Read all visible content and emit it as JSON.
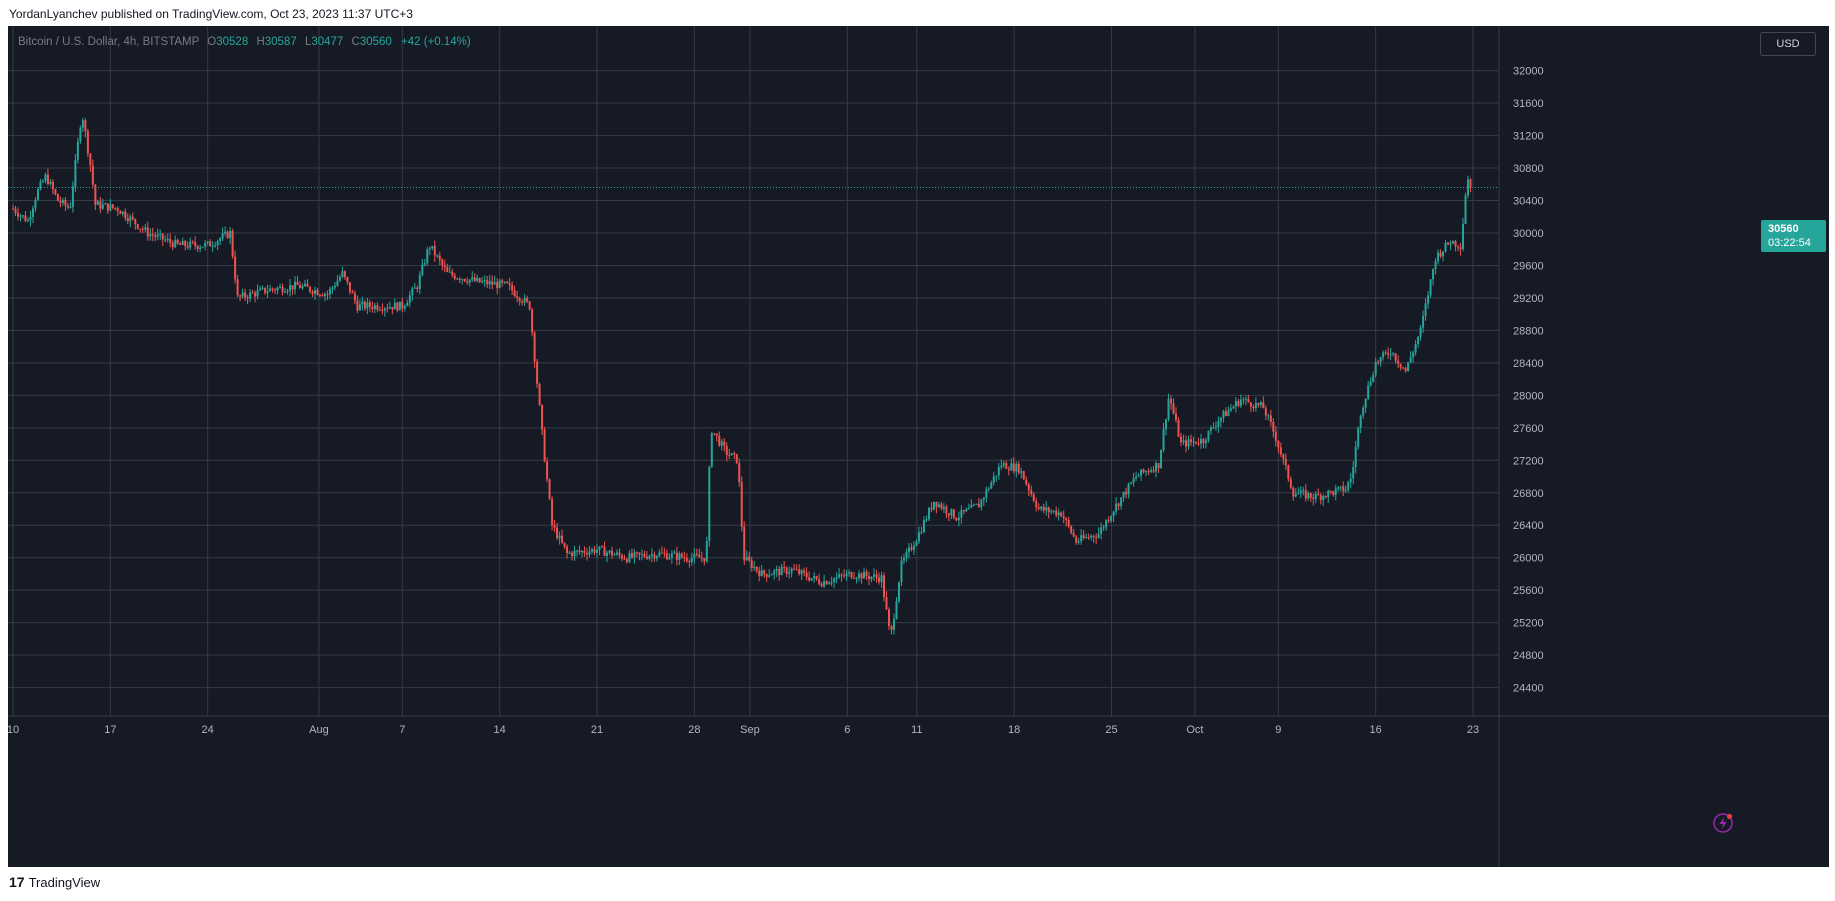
{
  "publication": {
    "byline": "YordanLyanchev published on TradingView.com, Oct 23, 2023 11:37 UTC+3"
  },
  "legend": {
    "symbol": "Bitcoin / U.S. Dollar, 4h, BITSTAMP",
    "open_label": "O",
    "open": "30528",
    "high_label": "H",
    "high": "30587",
    "low_label": "L",
    "low": "30477",
    "close_label": "C",
    "close": "30560",
    "change": "+42 (+0.14%)"
  },
  "currency_button": "USD",
  "last_price": {
    "price": "30560",
    "countdown": "03:22:54"
  },
  "footer": {
    "logo_mark": "17",
    "brand": "TradingView"
  },
  "colors": {
    "background": "#161a25",
    "grid": "#363a45",
    "up": "#26a69a",
    "down": "#ef5350",
    "text": "#b2b5be"
  },
  "icons": {
    "alert_badge": "lightning-bolt-icon",
    "footer_logo": "tradingview-logo-icon"
  },
  "chart_data": {
    "type": "candlestick",
    "timeframe": "4h",
    "title": "Bitcoin / U.S. Dollar, 4h, BITSTAMP",
    "x_ticks": [
      "10",
      "17",
      "24",
      "Aug",
      "7",
      "14",
      "21",
      "28",
      "Sep",
      "6",
      "11",
      "18",
      "25",
      "Oct",
      "9",
      "16",
      "23"
    ],
    "y_ticks": [
      24400,
      24800,
      25200,
      25600,
      26000,
      26400,
      26800,
      27200,
      27600,
      28000,
      28400,
      28800,
      29200,
      29600,
      30000,
      30400,
      30800,
      31200,
      31600,
      32000
    ],
    "ylim": [
      24050,
      32550
    ],
    "grid": true,
    "last_price_line": 30560,
    "price_path": [
      {
        "d": 0,
        "p": 30300
      },
      {
        "d": 1,
        "p": 30150
      },
      {
        "d": 1.6,
        "p": 30500
      },
      {
        "d": 2.2,
        "p": 30700
      },
      {
        "d": 3,
        "p": 30400
      },
      {
        "d": 3.8,
        "p": 30300
      },
      {
        "d": 4.6,
        "p": 31500
      },
      {
        "d": 5.2,
        "p": 30800
      },
      {
        "d": 5.5,
        "p": 30350
      },
      {
        "d": 7,
        "p": 30300
      },
      {
        "d": 9,
        "p": 30000
      },
      {
        "d": 11,
        "p": 29850
      },
      {
        "d": 13,
        "p": 29850
      },
      {
        "d": 14.5,
        "p": 30000
      },
      {
        "d": 15,
        "p": 29200
      },
      {
        "d": 17,
        "p": 29300
      },
      {
        "d": 19,
        "p": 29350
      },
      {
        "d": 21,
        "p": 29250
      },
      {
        "d": 22,
        "p": 29500
      },
      {
        "d": 23,
        "p": 29100
      },
      {
        "d": 24.5,
        "p": 29100
      },
      {
        "d": 26,
        "p": 29100
      },
      {
        "d": 27,
        "p": 29350
      },
      {
        "d": 27.8,
        "p": 29850
      },
      {
        "d": 29,
        "p": 29500
      },
      {
        "d": 31,
        "p": 29400
      },
      {
        "d": 33,
        "p": 29350
      },
      {
        "d": 34.5,
        "p": 29100
      },
      {
        "d": 35.4,
        "p": 27400
      },
      {
        "d": 36,
        "p": 26400
      },
      {
        "d": 37,
        "p": 26050
      },
      {
        "d": 39,
        "p": 26100
      },
      {
        "d": 41,
        "p": 26000
      },
      {
        "d": 43,
        "p": 26050
      },
      {
        "d": 45,
        "p": 26000
      },
      {
        "d": 46.3,
        "p": 26000
      },
      {
        "d": 46.6,
        "p": 27600
      },
      {
        "d": 47.6,
        "p": 27300
      },
      {
        "d": 48.4,
        "p": 27200
      },
      {
        "d": 48.8,
        "p": 26000
      },
      {
        "d": 50,
        "p": 25800
      },
      {
        "d": 52,
        "p": 25850
      },
      {
        "d": 54,
        "p": 25700
      },
      {
        "d": 56,
        "p": 25800
      },
      {
        "d": 58,
        "p": 25750
      },
      {
        "d": 58.6,
        "p": 25000
      },
      {
        "d": 59.3,
        "p": 25900
      },
      {
        "d": 60.5,
        "p": 26300
      },
      {
        "d": 61.5,
        "p": 26700
      },
      {
        "d": 63,
        "p": 26500
      },
      {
        "d": 64.5,
        "p": 26650
      },
      {
        "d": 66,
        "p": 27150
      },
      {
        "d": 67.2,
        "p": 27100
      },
      {
        "d": 68.5,
        "p": 26600
      },
      {
        "d": 70,
        "p": 26550
      },
      {
        "d": 71,
        "p": 26200
      },
      {
        "d": 72.5,
        "p": 26300
      },
      {
        "d": 73.5,
        "p": 26600
      },
      {
        "d": 75,
        "p": 27000
      },
      {
        "d": 76.5,
        "p": 27150
      },
      {
        "d": 77.2,
        "p": 28000
      },
      {
        "d": 78,
        "p": 27400
      },
      {
        "d": 79.5,
        "p": 27450
      },
      {
        "d": 80.5,
        "p": 27700
      },
      {
        "d": 82,
        "p": 27950
      },
      {
        "d": 83.5,
        "p": 27850
      },
      {
        "d": 84.3,
        "p": 27500
      },
      {
        "d": 85.5,
        "p": 26800
      },
      {
        "d": 87,
        "p": 26750
      },
      {
        "d": 89,
        "p": 26850
      },
      {
        "d": 89.4,
        "p": 27000
      },
      {
        "d": 90,
        "p": 27800
      },
      {
        "d": 91,
        "p": 28400
      },
      {
        "d": 92,
        "p": 28550
      },
      {
        "d": 93,
        "p": 28300
      },
      {
        "d": 94,
        "p": 28800
      },
      {
        "d": 95,
        "p": 29700
      },
      {
        "d": 96,
        "p": 29900
      },
      {
        "d": 96.7,
        "p": 29850
      },
      {
        "d": 97.1,
        "p": 30700
      },
      {
        "d": 97.4,
        "p": 30560
      }
    ]
  }
}
